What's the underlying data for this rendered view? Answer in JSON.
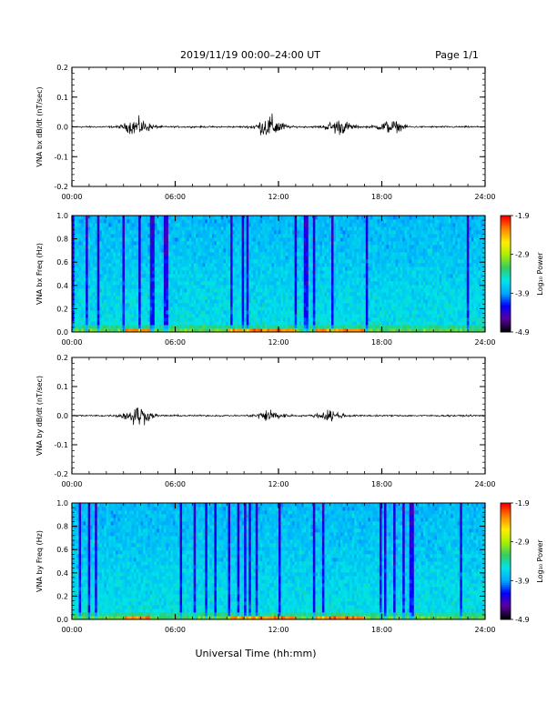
{
  "header": {
    "title": "2019/11/19  00:00–24:00 UT",
    "page": "Page 1/1"
  },
  "footer": {
    "xlabel": "Universal Time (hh:mm)"
  },
  "colors": {
    "trace": "#000000",
    "colormap": [
      "#000000",
      "#5a00a0",
      "#0000ff",
      "#00aaff",
      "#00e5e5",
      "#33cc66",
      "#aaee00",
      "#ffee00",
      "#ff8800",
      "#ff0000"
    ]
  },
  "chart_data": [
    {
      "type": "line",
      "ylabel": "VNA bx dB/dt (nT/sec)",
      "xlim": [
        0,
        24
      ],
      "ylim": [
        -0.2,
        0.2
      ],
      "x_ticks": [
        "00:00",
        "06:00",
        "12:00",
        "18:00",
        "24:00"
      ],
      "y_ticks": [
        "0.2",
        "0.1",
        "0.0",
        "-0.1",
        "-0.2"
      ],
      "bursts": [
        {
          "center_hours": 3.8,
          "amplitude": 0.04
        },
        {
          "center_hours": 11.5,
          "amplitude": 0.055
        },
        {
          "center_hours": 15.5,
          "amplitude": 0.035
        },
        {
          "center_hours": 18.5,
          "amplitude": 0.03
        }
      ]
    },
    {
      "type": "heatmap",
      "ylabel": "VNA bx Freq (Hz)",
      "xlim": [
        0,
        24
      ],
      "ylim": [
        0.0,
        1.0
      ],
      "x_ticks": [
        "00:00",
        "06:00",
        "12:00",
        "18:00",
        "24:00"
      ],
      "y_ticks": [
        "1.0",
        "0.8",
        "0.6",
        "0.4",
        "0.2",
        "0.0"
      ],
      "colorbar_label": "Log₁₀ Power",
      "colorbar_ticks": [
        "-1.9",
        "-2.9",
        "-3.9",
        "-4.9"
      ],
      "zlim": [
        -4.9,
        -1.9
      ]
    },
    {
      "type": "line",
      "ylabel": "VNA by dB/dt (nT/sec)",
      "xlim": [
        0,
        24
      ],
      "ylim": [
        -0.2,
        0.2
      ],
      "x_ticks": [
        "00:00",
        "06:00",
        "12:00",
        "18:00",
        "24:00"
      ],
      "y_ticks": [
        "0.2",
        "0.1",
        "0.0",
        "-0.1",
        "-0.2"
      ],
      "bursts": [
        {
          "center_hours": 3.8,
          "amplitude": 0.05
        },
        {
          "center_hours": 11.5,
          "amplitude": 0.03
        },
        {
          "center_hours": 15.0,
          "amplitude": 0.025
        }
      ]
    },
    {
      "type": "heatmap",
      "ylabel": "VNA by Freq (Hz)",
      "xlim": [
        0,
        24
      ],
      "ylim": [
        0.0,
        1.0
      ],
      "x_ticks": [
        "00:00",
        "06:00",
        "12:00",
        "18:00",
        "24:00"
      ],
      "y_ticks": [
        "1.0",
        "0.8",
        "0.6",
        "0.4",
        "0.2",
        "0.0"
      ],
      "colorbar_label": "Log₁₀ Power",
      "colorbar_ticks": [
        "-1.9",
        "-2.9",
        "-3.9",
        "-4.9"
      ],
      "zlim": [
        -4.9,
        -1.9
      ]
    }
  ]
}
